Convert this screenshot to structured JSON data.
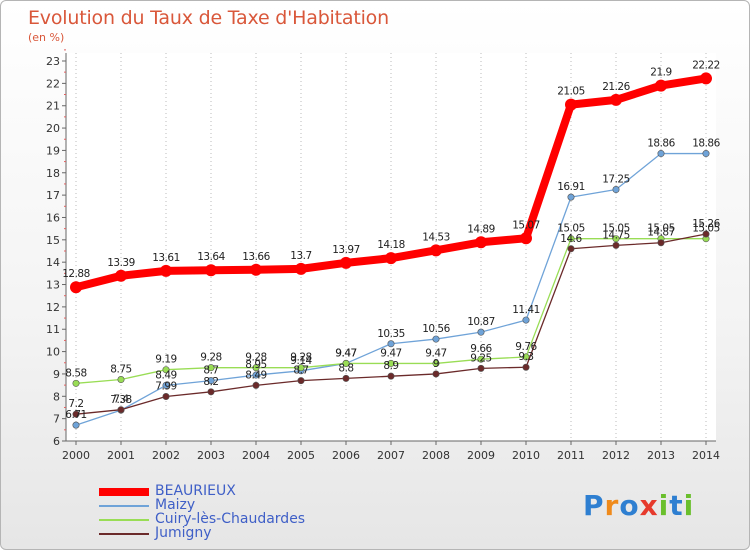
{
  "header": {
    "title": "Evolution du Taux de Taxe d'Habitation",
    "subtitle": "(en %)"
  },
  "logo": {
    "text": "Proxiti"
  },
  "chart_data": {
    "type": "line",
    "title": "Evolution du Taux de Taxe d'Habitation",
    "ylabel": "(en %)",
    "xlabel": "",
    "x": [
      "2000",
      "2001",
      "2002",
      "2003",
      "2004",
      "2005",
      "2006",
      "2007",
      "2008",
      "2009",
      "2010",
      "2011",
      "2012",
      "2013",
      "2014"
    ],
    "ylim": [
      6,
      23
    ],
    "yticks": [
      6,
      7,
      8,
      9,
      10,
      11,
      12,
      13,
      14,
      15,
      16,
      17,
      18,
      19,
      20,
      21,
      22,
      23
    ],
    "grid": "dotted-vertical",
    "legend_position": "bottom-left",
    "series": [
      {
        "name": "BEAURIEUX",
        "color": "#ff0000",
        "values": [
          12.88,
          13.39,
          13.61,
          13.64,
          13.66,
          13.7,
          13.97,
          14.18,
          14.53,
          14.89,
          15.07,
          21.05,
          21.26,
          21.9,
          22.22
        ],
        "labels": [
          "12.88",
          "13.39",
          "13.61",
          "13.64",
          "13.66",
          "13.7",
          "13.97",
          "14.18",
          "14.53",
          "14.89",
          "15.07",
          "21.05",
          "21.26",
          "21.9",
          "22.22"
        ]
      },
      {
        "name": "Maizy",
        "color": "#6fa3d8",
        "values": [
          6.71,
          7.38,
          8.49,
          8.7,
          8.95,
          9.14,
          9.47,
          10.35,
          10.56,
          10.87,
          11.41,
          16.91,
          17.25,
          18.86,
          18.86
        ],
        "labels": [
          "6.71",
          "7.38",
          "8.49",
          "8.7",
          "8.95",
          "9.14",
          "9.47",
          "10.35",
          "10.56",
          "10.87",
          "11.41",
          "16.91",
          "17.25",
          "18.86",
          "18.86"
        ]
      },
      {
        "name": "Cuiry-lès-Chaudardes",
        "color": "#99dd55",
        "values": [
          8.58,
          8.75,
          9.19,
          9.28,
          9.28,
          9.28,
          9.47,
          9.47,
          9.47,
          9.66,
          9.76,
          15.05,
          15.05,
          15.05,
          15.05
        ],
        "labels": [
          "8.58",
          "8.75",
          "9.19",
          "9.28",
          "9.28",
          "9.28",
          "9.47",
          "9.47",
          "9.47",
          "9.66",
          "9.76",
          "15.05",
          "15.05",
          "15.05",
          "15.05"
        ]
      },
      {
        "name": "Jumigny",
        "color": "#6b2a2a",
        "values": [
          7.2,
          7.4,
          7.99,
          8.2,
          8.49,
          8.7,
          8.8,
          8.9,
          9.0,
          9.25,
          9.3,
          14.6,
          14.75,
          14.87,
          15.26
        ],
        "labels": [
          "7.2",
          "7.4",
          "7.99",
          "8.2",
          "8.49",
          "8.7",
          "8.8",
          "8.9",
          "9",
          "9.25",
          "9.3",
          "14.6",
          "14.75",
          "14.87",
          "15.26"
        ]
      }
    ]
  }
}
